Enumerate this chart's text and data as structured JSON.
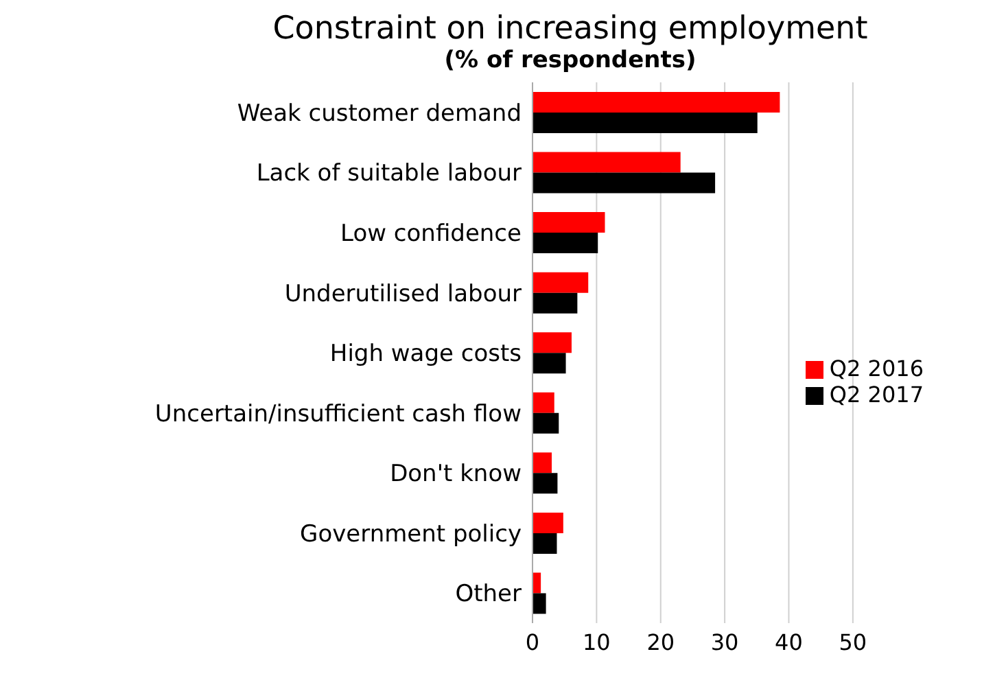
{
  "chart_data": {
    "type": "bar",
    "orientation": "horizontal",
    "title": "Constraint on increasing employment",
    "subtitle": "(% of respondents)",
    "categories": [
      "Weak customer demand",
      "Lack of suitable labour",
      "Low confidence",
      "Underutilised labour",
      "High wage costs",
      "Uncertain/insufficient cash flow",
      "Don't know",
      "Government policy",
      "Other"
    ],
    "series": [
      {
        "name": "Q2 2016",
        "color": "#ff0000",
        "values": [
          38.6,
          23.1,
          11.3,
          8.7,
          6.1,
          3.4,
          3.0,
          4.8,
          1.3
        ]
      },
      {
        "name": "Q2 2017",
        "color": "#000000",
        "values": [
          35.1,
          28.5,
          10.2,
          7.0,
          5.2,
          4.1,
          3.9,
          3.8,
          2.1
        ]
      }
    ],
    "xlim": [
      0,
      50
    ],
    "xticks": [
      0,
      10,
      20,
      30,
      40,
      50
    ],
    "grid": "x",
    "legend": "right"
  }
}
